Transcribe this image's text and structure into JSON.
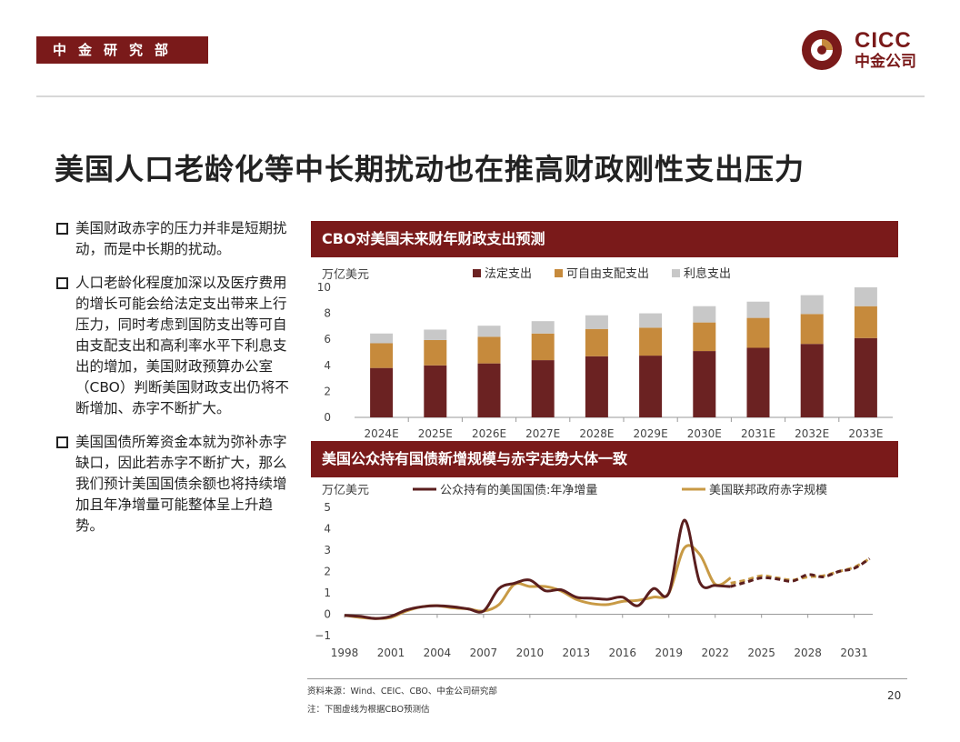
{
  "header": {
    "dept": "中金研究部",
    "logo_en": "CICC",
    "logo_cn": "中金公司"
  },
  "title": "美国人口老龄化等中长期扰动也在推高财政刚性支出压力",
  "bullets": [
    "美国财政赤字的压力并非是短期扰动，而是中长期的扰动。",
    "人口老龄化程度加深以及医疗费用的增长可能会给法定支出带来上行压力，同时考虑到国防支出等可自由支配支出和高利率水平下利息支出的增加，美国财政预算办公室（CBO）判断美国财政支出仍将不断增加、赤字不断扩大。",
    "美国国债所筹资金本就为弥补赤字缺口，因此若赤字不断扩大，那么我们预计美国国债余额也将持续增加且年净增量可能整体呈上升趋势。"
  ],
  "footer": {
    "source": "资料来源：Wind、CEIC、CBO、中金公司研究部",
    "note": "注：下图虚线为根据CBO预测估",
    "page": "20"
  },
  "colors": {
    "brand": "#7a1a1a",
    "mandatory": "#6b2222",
    "discretionary": "#c68a3c",
    "interest": "#c8c8c8",
    "debt": "#5a1e1e",
    "deficit": "#c89a45"
  },
  "chart_data": [
    {
      "type": "bar",
      "title": "CBO对美国未来财年财政支出预测",
      "ylabel": "万亿美元",
      "ylim": [
        0,
        10
      ],
      "yticks": [
        0,
        2,
        4,
        6,
        8,
        10
      ],
      "legend_position": "top",
      "categories": [
        "2024E",
        "2025E",
        "2026E",
        "2027E",
        "2028E",
        "2029E",
        "2030E",
        "2031E",
        "2032E",
        "2033E"
      ],
      "series": [
        {
          "name": "法定支出",
          "color": "#6b2222",
          "values": [
            3.8,
            4.0,
            4.15,
            4.4,
            4.7,
            4.75,
            5.1,
            5.35,
            5.65,
            6.1
          ]
        },
        {
          "name": "可自由支配支出",
          "color": "#c68a3c",
          "values": [
            1.9,
            1.95,
            2.05,
            2.05,
            2.1,
            2.15,
            2.2,
            2.3,
            2.3,
            2.45
          ]
        },
        {
          "name": "利息支出",
          "color": "#c8c8c8",
          "values": [
            0.75,
            0.8,
            0.85,
            0.95,
            1.05,
            1.1,
            1.25,
            1.25,
            1.45,
            1.45
          ]
        }
      ]
    },
    {
      "type": "line",
      "title": "美国公众持有国债新增规模与赤字走势大体一致",
      "ylabel": "万亿美元",
      "ylim": [
        -1,
        5
      ],
      "yticks": [
        -1,
        0,
        1,
        2,
        3,
        4,
        5
      ],
      "xlim": [
        1998,
        2032.2
      ],
      "xticks": [
        1998,
        2001,
        2004,
        2007,
        2010,
        2013,
        2016,
        2019,
        2022,
        2025,
        2028,
        2031
      ],
      "legend_position": "top",
      "series": [
        {
          "name": "公众持有的美国国债:年净增量",
          "color": "#5a1e1e",
          "actual": [
            [
              1998,
              -0.05
            ],
            [
              1999,
              -0.1
            ],
            [
              2000,
              -0.2
            ],
            [
              2001,
              -0.1
            ],
            [
              2002,
              0.2
            ],
            [
              2003,
              0.35
            ],
            [
              2004,
              0.4
            ],
            [
              2005,
              0.35
            ],
            [
              2006,
              0.25
            ],
            [
              2007,
              0.15
            ],
            [
              2008,
              1.2
            ],
            [
              2009,
              1.45
            ],
            [
              2010,
              1.6
            ],
            [
              2011,
              1.1
            ],
            [
              2012,
              1.15
            ],
            [
              2013,
              0.8
            ],
            [
              2014,
              0.75
            ],
            [
              2015,
              0.7
            ],
            [
              2016,
              0.8
            ],
            [
              2017,
              0.4
            ],
            [
              2018,
              1.2
            ],
            [
              2019,
              1.0
            ],
            [
              2020,
              4.4
            ],
            [
              2021,
              1.5
            ],
            [
              2022,
              1.35
            ],
            [
              2023,
              1.3
            ]
          ],
          "forecast": [
            [
              2023,
              1.3
            ],
            [
              2024,
              1.5
            ],
            [
              2025,
              1.7
            ],
            [
              2026,
              1.65
            ],
            [
              2027,
              1.55
            ],
            [
              2028,
              1.85
            ],
            [
              2029,
              1.75
            ],
            [
              2030,
              2.0
            ],
            [
              2031,
              2.15
            ],
            [
              2032,
              2.6
            ]
          ]
        },
        {
          "name": "美国联邦政府赤字规模",
          "color": "#c89a45",
          "actual": [
            [
              1998,
              -0.05
            ],
            [
              1999,
              -0.15
            ],
            [
              2000,
              -0.2
            ],
            [
              2001,
              -0.15
            ],
            [
              2002,
              0.15
            ],
            [
              2003,
              0.35
            ],
            [
              2004,
              0.4
            ],
            [
              2005,
              0.3
            ],
            [
              2006,
              0.25
            ],
            [
              2007,
              0.15
            ],
            [
              2008,
              0.45
            ],
            [
              2009,
              1.4
            ],
            [
              2010,
              1.3
            ],
            [
              2011,
              1.3
            ],
            [
              2012,
              1.1
            ],
            [
              2013,
              0.7
            ],
            [
              2014,
              0.5
            ],
            [
              2015,
              0.45
            ],
            [
              2016,
              0.6
            ],
            [
              2017,
              0.65
            ],
            [
              2018,
              0.8
            ],
            [
              2019,
              1.0
            ],
            [
              2020,
              3.1
            ],
            [
              2021,
              2.8
            ],
            [
              2022,
              1.4
            ],
            [
              2023,
              1.7
            ]
          ],
          "forecast": [
            [
              2023,
              1.45
            ],
            [
              2024,
              1.6
            ],
            [
              2025,
              1.8
            ],
            [
              2026,
              1.7
            ],
            [
              2027,
              1.6
            ],
            [
              2028,
              1.75
            ],
            [
              2029,
              1.8
            ],
            [
              2030,
              2.0
            ],
            [
              2031,
              2.2
            ],
            [
              2032,
              2.6
            ]
          ]
        }
      ]
    }
  ]
}
